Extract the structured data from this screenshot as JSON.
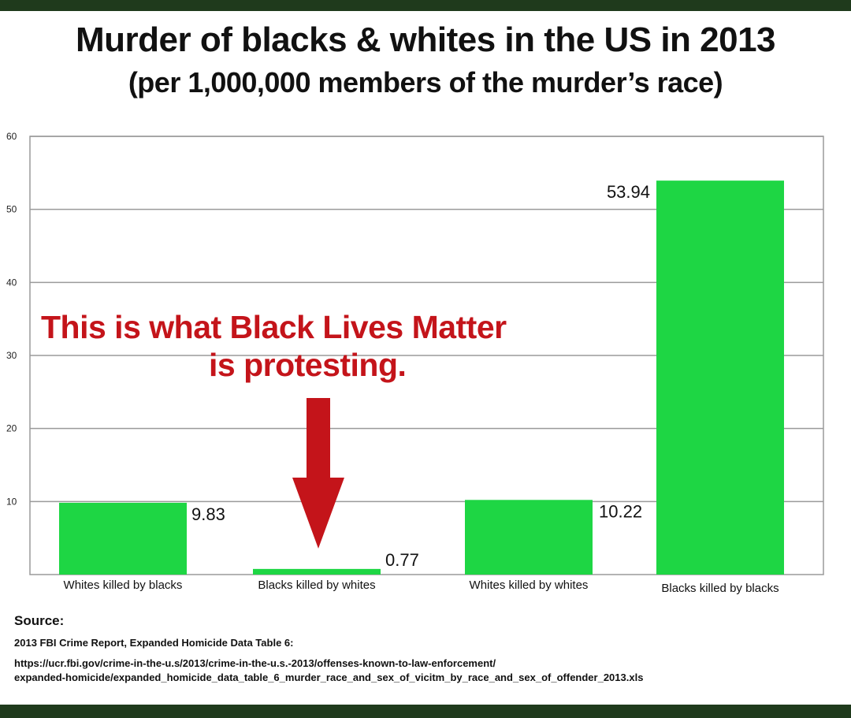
{
  "chart_data": {
    "type": "bar",
    "title": "Murder of blacks & whites in the US in 2013",
    "subtitle": "(per 1,000,000 members of the murder’s race)",
    "categories": [
      "Whites killed by blacks",
      "Blacks killed by whites",
      "Whites killed by whites",
      "Blacks killed by blacks"
    ],
    "values": [
      9.83,
      0.77,
      10.22,
      53.94
    ],
    "value_labels": [
      "9.83",
      "0.77",
      "10.22",
      "53.94"
    ],
    "ylim": [
      0,
      60
    ],
    "yticks": [
      10,
      20,
      30,
      40,
      50,
      60
    ],
    "grid": true,
    "bar_color": "#1ed644",
    "annotation": {
      "line1": "This is what Black Lives Matter",
      "line2": "is protesting.",
      "color": "#c4141a",
      "points_to": "Blacks killed by whites"
    }
  },
  "source": {
    "label": "Source:",
    "line1": "2013 FBI Crime Report, Expanded Homicide Data Table 6:",
    "line2": "https://ucr.fbi.gov/crime-in-the-u.s/2013/crime-in-the-u.s.-2013/offenses-known-to-law-enforcement/",
    "line3": "expanded-homicide/expanded_homicide_data_table_6_murder_race_and_sex_of_vicitm_by_race_and_sex_of_offender_2013.xls"
  }
}
